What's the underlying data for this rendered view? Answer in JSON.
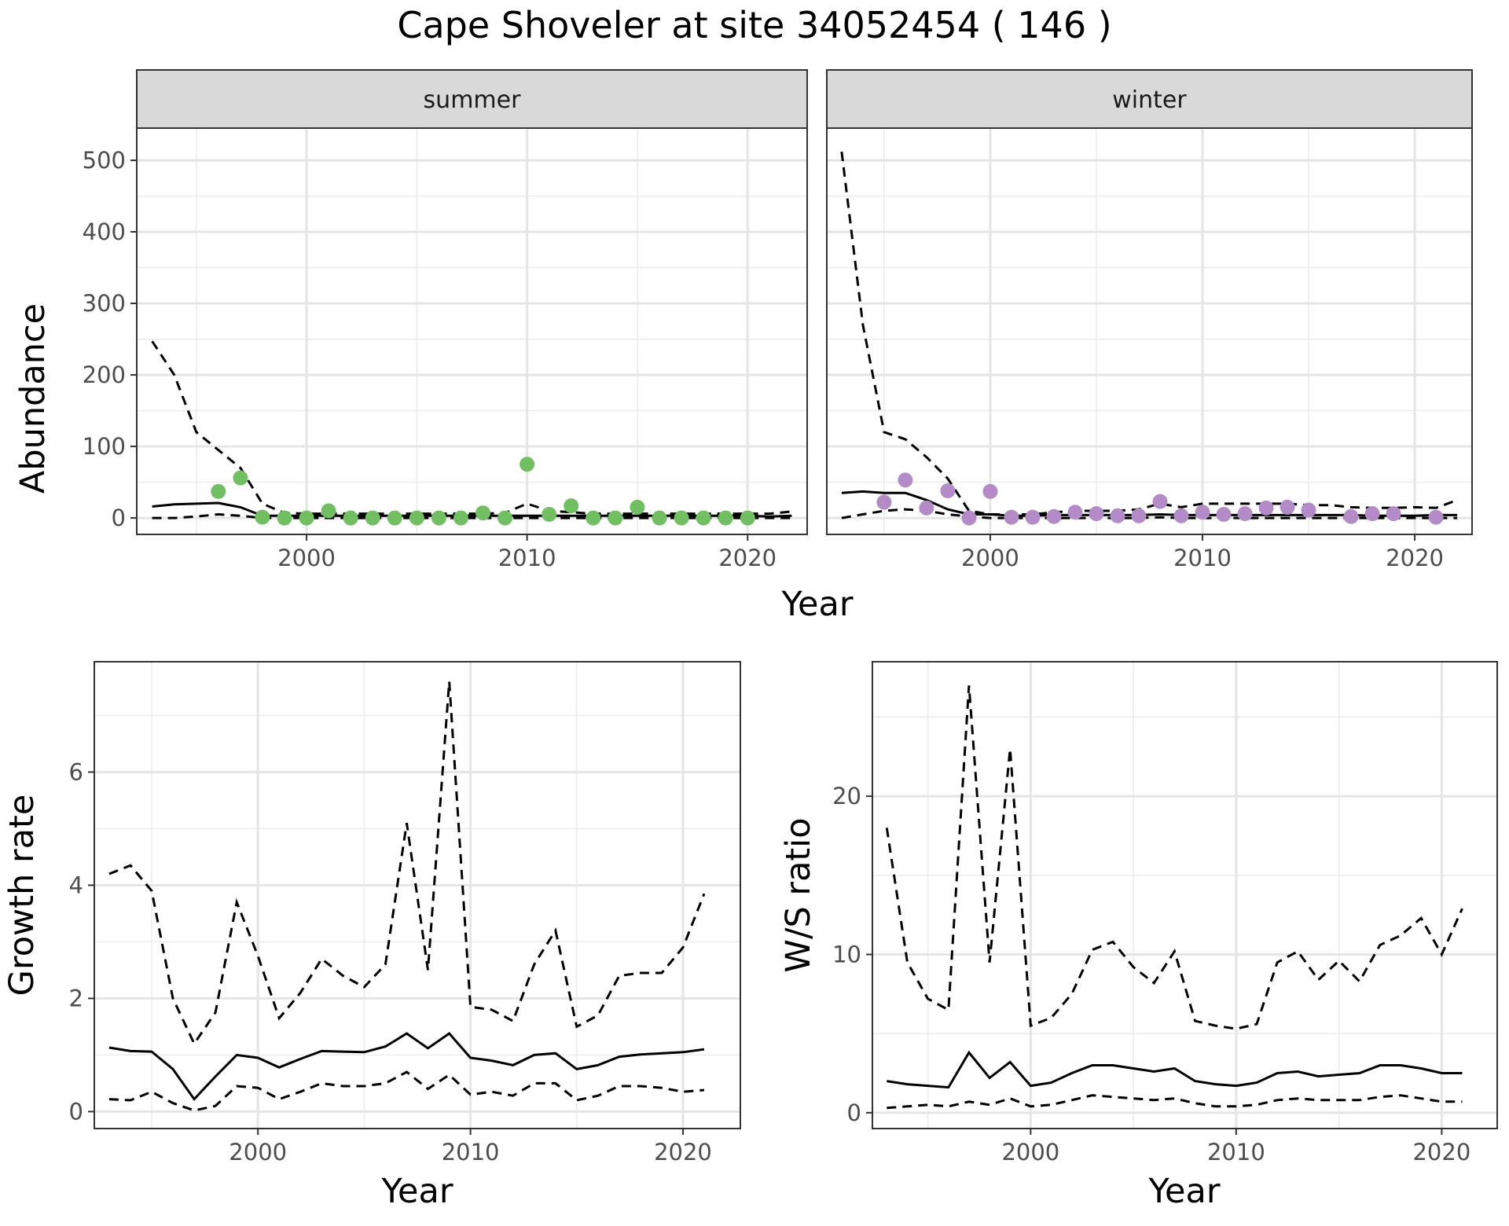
{
  "title": "Cape Shoveler at site 34052454 ( 146 )",
  "colors": {
    "summer_points": "#72BF63",
    "winter_points": "#B38CC7",
    "lines": "#000000"
  },
  "chart_data": [
    {
      "type": "line",
      "panel": "summer",
      "facet_label": "summer",
      "xlabel": "Year",
      "ylabel": "Abundance",
      "xlim": [
        1992.3,
        2022.7
      ],
      "ylim": [
        -23,
        545
      ],
      "xticks": [
        2000,
        2010,
        2020
      ],
      "yticks": [
        0,
        100,
        200,
        300,
        400,
        500
      ],
      "grid": true,
      "x": [
        1993,
        1994,
        1995,
        1996,
        1997,
        1998,
        1999,
        2000,
        2001,
        2002,
        2003,
        2004,
        2005,
        2006,
        2007,
        2008,
        2009,
        2010,
        2011,
        2012,
        2013,
        2014,
        2015,
        2016,
        2017,
        2018,
        2019,
        2020,
        2021,
        2022
      ],
      "mean": [
        16,
        19,
        20,
        21,
        15,
        3,
        3,
        3,
        3,
        3,
        3,
        3,
        3,
        3,
        3,
        3,
        3,
        3,
        3,
        3,
        3,
        3,
        3,
        3,
        3,
        3,
        3,
        3,
        2,
        3
      ],
      "upper": [
        247,
        200,
        120,
        95,
        70,
        20,
        7,
        6,
        6,
        6,
        6,
        6,
        6,
        6,
        6,
        6,
        7,
        20,
        10,
        8,
        6,
        6,
        6,
        6,
        6,
        6,
        6,
        6,
        6,
        9
      ],
      "lower": [
        0,
        0,
        2,
        5,
        3,
        0,
        0,
        0,
        0,
        0,
        0,
        0,
        0,
        0,
        0,
        0,
        0,
        0,
        0,
        0,
        0,
        0,
        0,
        0,
        0,
        0,
        0,
        0,
        0,
        0
      ],
      "points": [
        [
          1996,
          37
        ],
        [
          1997,
          56
        ],
        [
          1998,
          1
        ],
        [
          1999,
          0
        ],
        [
          2000,
          0
        ],
        [
          2001,
          10
        ],
        [
          2002,
          0
        ],
        [
          2003,
          0
        ],
        [
          2004,
          0
        ],
        [
          2005,
          0
        ],
        [
          2006,
          0
        ],
        [
          2007,
          0
        ],
        [
          2008,
          7
        ],
        [
          2009,
          0
        ],
        [
          2010,
          75
        ],
        [
          2011,
          5
        ],
        [
          2012,
          17
        ],
        [
          2013,
          0
        ],
        [
          2014,
          0
        ],
        [
          2015,
          15
        ],
        [
          2016,
          0
        ],
        [
          2017,
          0
        ],
        [
          2018,
          0
        ],
        [
          2019,
          0
        ],
        [
          2020,
          0
        ]
      ]
    },
    {
      "type": "line",
      "panel": "winter",
      "facet_label": "winter",
      "xlabel": "Year",
      "ylabel": "Abundance",
      "xlim": [
        1992.3,
        2022.7
      ],
      "ylim": [
        -23,
        545
      ],
      "xticks": [
        2000,
        2010,
        2020
      ],
      "yticks": [
        0,
        100,
        200,
        300,
        400,
        500
      ],
      "grid": true,
      "x": [
        1993,
        1994,
        1995,
        1996,
        1997,
        1998,
        1999,
        2000,
        2001,
        2002,
        2003,
        2004,
        2005,
        2006,
        2007,
        2008,
        2009,
        2010,
        2011,
        2012,
        2013,
        2014,
        2015,
        2016,
        2017,
        2018,
        2019,
        2020,
        2021,
        2022
      ],
      "mean": [
        35,
        37,
        35,
        35,
        25,
        12,
        5,
        5,
        3,
        3,
        4,
        4,
        4,
        4,
        4,
        5,
        4,
        4,
        4,
        4,
        4,
        4,
        4,
        4,
        4,
        3,
        3,
        3,
        4,
        4
      ],
      "upper": [
        512,
        270,
        120,
        110,
        85,
        55,
        10,
        5,
        5,
        5,
        8,
        10,
        10,
        10,
        12,
        20,
        15,
        20,
        20,
        20,
        20,
        20,
        18,
        18,
        15,
        14,
        14,
        15,
        14,
        25
      ],
      "lower": [
        0,
        5,
        10,
        12,
        10,
        5,
        2,
        0,
        0,
        0,
        0,
        0,
        0,
        0,
        0,
        1,
        0,
        0,
        0,
        0,
        0,
        0,
        0,
        0,
        0,
        0,
        0,
        0,
        0,
        0
      ],
      "points": [
        [
          1995,
          22
        ],
        [
          1996,
          53
        ],
        [
          1997,
          14
        ],
        [
          1998,
          38
        ],
        [
          1999,
          0
        ],
        [
          2000,
          37
        ],
        [
          2001,
          1
        ],
        [
          2002,
          1
        ],
        [
          2003,
          2
        ],
        [
          2004,
          8
        ],
        [
          2005,
          6
        ],
        [
          2006,
          3
        ],
        [
          2007,
          3
        ],
        [
          2008,
          23
        ],
        [
          2009,
          3
        ],
        [
          2010,
          8
        ],
        [
          2011,
          5
        ],
        [
          2012,
          6
        ],
        [
          2013,
          14
        ],
        [
          2014,
          15
        ],
        [
          2015,
          11
        ],
        [
          2017,
          2
        ],
        [
          2018,
          6
        ],
        [
          2019,
          6
        ],
        [
          2021,
          1
        ]
      ]
    },
    {
      "type": "line",
      "panel": "growth",
      "xlabel": "Year",
      "ylabel": "Growth rate",
      "xlim": [
        1992.3,
        2022.7
      ],
      "ylim": [
        -0.3,
        7.95
      ],
      "xticks": [
        2000,
        2010,
        2020
      ],
      "yticks": [
        0,
        2,
        4,
        6
      ],
      "grid": true,
      "x": [
        1993,
        1994,
        1995,
        1996,
        1997,
        1998,
        1999,
        2000,
        2001,
        2002,
        2003,
        2004,
        2005,
        2006,
        2007,
        2008,
        2009,
        2010,
        2011,
        2012,
        2013,
        2014,
        2015,
        2016,
        2017,
        2018,
        2019,
        2020,
        2021
      ],
      "mean": [
        1.13,
        1.07,
        1.06,
        0.75,
        0.22,
        0.62,
        1.0,
        0.95,
        0.78,
        0.93,
        1.07,
        1.06,
        1.05,
        1.15,
        1.38,
        1.12,
        1.38,
        0.95,
        0.9,
        0.82,
        1.0,
        1.03,
        0.75,
        0.82,
        0.97,
        1.01,
        1.03,
        1.05,
        1.1
      ],
      "upper": [
        4.2,
        4.35,
        3.9,
        2.0,
        1.2,
        1.75,
        3.7,
        2.75,
        1.65,
        2.1,
        2.7,
        2.4,
        2.2,
        2.6,
        5.1,
        2.5,
        7.6,
        1.85,
        1.8,
        1.6,
        2.6,
        3.2,
        1.5,
        1.7,
        2.4,
        2.45,
        2.45,
        2.9,
        3.85
      ],
      "lower": [
        0.22,
        0.2,
        0.35,
        0.15,
        0.02,
        0.1,
        0.45,
        0.42,
        0.22,
        0.35,
        0.5,
        0.45,
        0.45,
        0.5,
        0.7,
        0.4,
        0.65,
        0.3,
        0.35,
        0.28,
        0.5,
        0.5,
        0.2,
        0.28,
        0.45,
        0.45,
        0.42,
        0.35,
        0.38
      ]
    },
    {
      "type": "line",
      "panel": "ratio",
      "xlabel": "Year",
      "ylabel": "W/S ratio",
      "xlim": [
        1992.3,
        2022.7
      ],
      "ylim": [
        -1.0,
        28.5
      ],
      "xticks": [
        2000,
        2010,
        2020
      ],
      "yticks": [
        0,
        10,
        20
      ],
      "grid": true,
      "x": [
        1993,
        1994,
        1995,
        1996,
        1997,
        1998,
        1999,
        2000,
        2001,
        2002,
        2003,
        2004,
        2005,
        2006,
        2007,
        2008,
        2009,
        2010,
        2011,
        2012,
        2013,
        2014,
        2015,
        2016,
        2017,
        2018,
        2019,
        2020,
        2021
      ],
      "mean": [
        2.0,
        1.8,
        1.7,
        1.6,
        3.8,
        2.2,
        3.2,
        1.7,
        1.9,
        2.5,
        3.0,
        3.0,
        2.8,
        2.6,
        2.8,
        2.0,
        1.8,
        1.7,
        1.9,
        2.5,
        2.6,
        2.3,
        2.4,
        2.5,
        3.0,
        3.0,
        2.8,
        2.5,
        2.5
      ],
      "upper": [
        18.0,
        9.5,
        7.2,
        6.5,
        27.0,
        9.5,
        23.0,
        5.5,
        6.0,
        7.5,
        10.3,
        10.8,
        9.2,
        8.2,
        10.2,
        5.8,
        5.5,
        5.3,
        5.6,
        9.5,
        10.2,
        8.4,
        9.6,
        8.3,
        10.6,
        11.2,
        12.3,
        10.0,
        12.9
      ],
      "lower": [
        0.3,
        0.4,
        0.5,
        0.4,
        0.7,
        0.5,
        0.9,
        0.4,
        0.5,
        0.8,
        1.1,
        1.0,
        0.9,
        0.8,
        0.9,
        0.6,
        0.4,
        0.4,
        0.5,
        0.8,
        0.9,
        0.8,
        0.8,
        0.8,
        1.0,
        1.1,
        0.9,
        0.7,
        0.7
      ]
    }
  ]
}
